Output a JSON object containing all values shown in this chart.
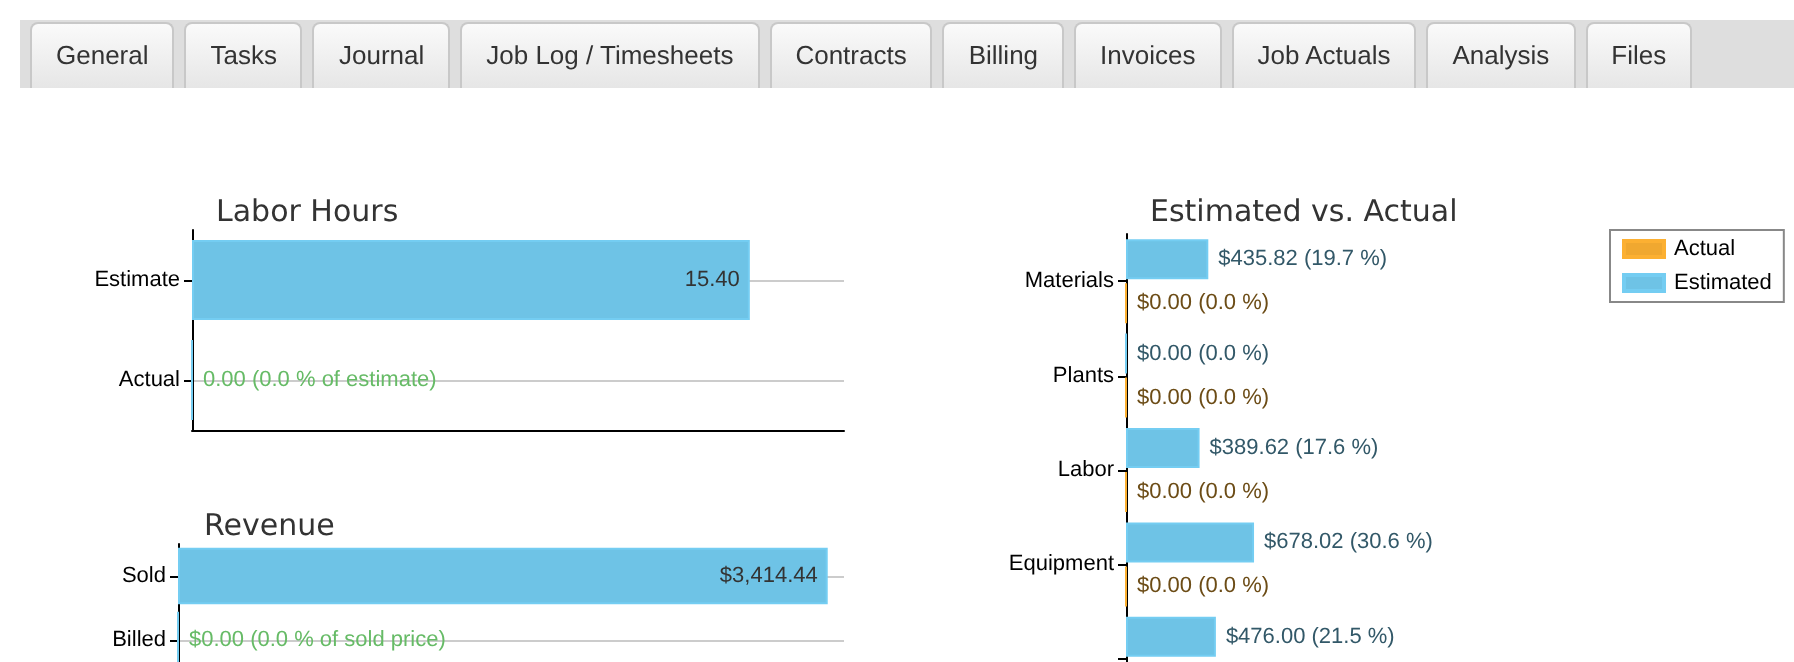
{
  "chart_data": [
    {
      "type": "other",
      "annotations": [
        "General",
        "Tasks",
        "Journal",
        "Job Log / Timesheets",
        "Contracts",
        "Billing",
        "Invoices",
        "Job Actuals",
        "Analysis",
        "Files"
      ]
    },
    {
      "type": "bar",
      "orientation": "horizontal",
      "title": "Labor Hours",
      "categories": [
        "Estimate",
        "Actual"
      ],
      "values": [
        15.4,
        0
      ],
      "value_labels": [
        "15.40",
        "0.00 (0.0 % of estimate)"
      ],
      "color": "#6ec3e6",
      "grid": "y"
    },
    {
      "type": "bar",
      "orientation": "horizontal",
      "title": "Revenue",
      "categories": [
        "Sold",
        "Billed"
      ],
      "values": [
        3414.44,
        0
      ],
      "value_labels": [
        "$3,414.44",
        "$0.00 (0.0 % of sold price)"
      ],
      "color": "#6ec3e6",
      "grid": "y"
    },
    {
      "type": "bar",
      "orientation": "horizontal",
      "title": "Estimated vs. Actual",
      "categories": [
        "Materials",
        "Plants",
        "Labor",
        "Equipment",
        null
      ],
      "legend": "top right",
      "series": [
        {
          "name": "Actual",
          "color": "#f0a830",
          "values": [
            0,
            0,
            0,
            0,
            null
          ],
          "value_labels": [
            "$0.00 (0.0 %)",
            "$0.00 (0.0 %)",
            "$0.00 (0.0 %)",
            "$0.00 (0.0 %)",
            null
          ]
        },
        {
          "name": "Estimated",
          "color": "#6ec3e6",
          "values": [
            435.82,
            0,
            389.62,
            678.02,
            476.0
          ],
          "value_labels": [
            "$435.82 (19.7 %)",
            "$0.00 (0.0 %)",
            "$389.62 (17.6 %)",
            "$678.02 (30.6 %)",
            "$476.00 (21.5 %)"
          ]
        }
      ]
    }
  ]
}
